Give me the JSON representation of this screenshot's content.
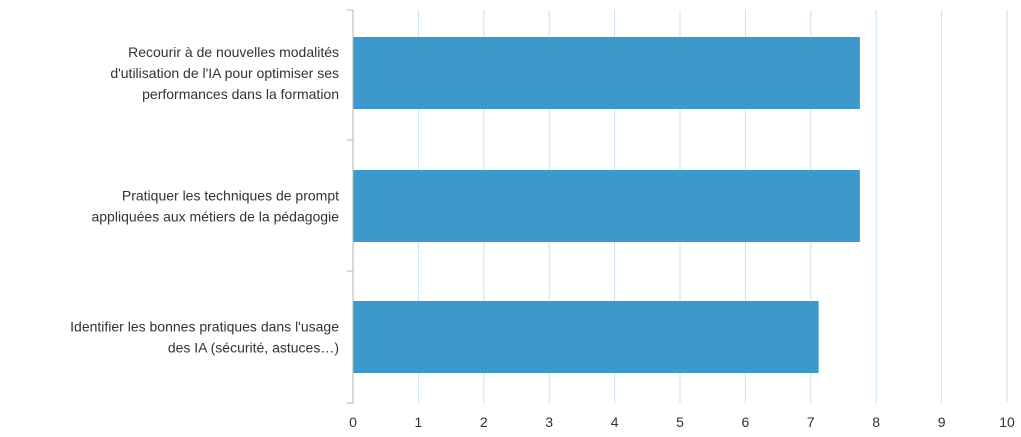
{
  "chart_data": {
    "type": "bar",
    "orientation": "horizontal",
    "categories": [
      [
        "Recourir à de nouvelles modalités",
        "d'utilisation de l'IA pour optimiser ses",
        "performances dans la formation"
      ],
      [
        "Pratiquer les techniques de prompt",
        "appliquées aux métiers de la pédagogie"
      ],
      [
        "Identifier les bonnes pratiques dans l'usage",
        "des IA (sécurité, astuces…)"
      ]
    ],
    "values": [
      7.75,
      7.75,
      7.12
    ],
    "xlim": [
      0,
      10
    ],
    "xticks": [
      "0",
      "1",
      "2",
      "3",
      "4",
      "5",
      "6",
      "7",
      "8",
      "9",
      "10"
    ],
    "grid": true,
    "colors": {
      "bar": "#3d98cc",
      "grid": "#c9dff2",
      "axis": "#b3b3b3",
      "text": "#333333"
    }
  }
}
